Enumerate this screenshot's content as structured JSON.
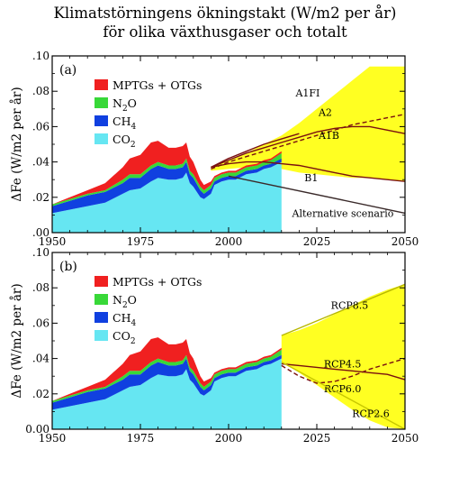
{
  "title": {
    "line1": "Klimatstörningens ökningstakt (W/m2 per år)",
    "line2": "för olika växthusgaser och totalt"
  },
  "colors": {
    "co2": "#66e6f2",
    "ch4": "#1040e0",
    "n2o": "#38d838",
    "mptgs": "#f02020",
    "scenario_band": "#ffff22",
    "scenario_line": "#7a1010"
  },
  "chart_data": [
    {
      "panel": "(a)",
      "type": "area",
      "ylabel": "ΔFe (W/m2 per år)",
      "xlim": [
        1950,
        2050
      ],
      "ylim": [
        0,
        0.1
      ],
      "xticks": [
        "1950",
        "1975",
        "2000",
        "2025",
        "2050"
      ],
      "yticks": [
        ".00",
        ".02",
        ".04",
        ".06",
        ".08",
        ".10"
      ],
      "legend": {
        "placement": "top-left",
        "entries": [
          "MPTGs + OTGs",
          "N2O",
          "CH4",
          "CO2"
        ]
      },
      "x": [
        1950,
        1955,
        1960,
        1965,
        1970,
        1972,
        1975,
        1978,
        1980,
        1983,
        1985,
        1987,
        1988,
        1989,
        1990,
        1992,
        1993,
        1995,
        1996,
        1998,
        2000,
        2002,
        2005,
        2008,
        2010,
        2012,
        2015
      ],
      "series": [
        {
          "name": "CO2",
          "values": [
            0.011,
            0.013,
            0.015,
            0.017,
            0.022,
            0.024,
            0.025,
            0.029,
            0.031,
            0.03,
            0.03,
            0.031,
            0.034,
            0.028,
            0.026,
            0.02,
            0.019,
            0.022,
            0.027,
            0.029,
            0.03,
            0.03,
            0.033,
            0.034,
            0.036,
            0.037,
            0.04
          ]
        },
        {
          "name": "CH4",
          "values": [
            0.004,
            0.005,
            0.006,
            0.006,
            0.006,
            0.007,
            0.006,
            0.007,
            0.007,
            0.006,
            0.006,
            0.006,
            0.006,
            0.005,
            0.005,
            0.004,
            0.003,
            0.003,
            0.002,
            0.002,
            0.002,
            0.002,
            0.002,
            0.002,
            0.002,
            0.002,
            0.002
          ]
        },
        {
          "name": "N2O",
          "values": [
            0.001,
            0.001,
            0.001,
            0.001,
            0.002,
            0.002,
            0.002,
            0.002,
            0.002,
            0.002,
            0.002,
            0.002,
            0.002,
            0.002,
            0.002,
            0.002,
            0.002,
            0.002,
            0.002,
            0.002,
            0.002,
            0.002,
            0.002,
            0.002,
            0.002,
            0.002,
            0.003
          ]
        },
        {
          "name": "MPTGs + OTGs",
          "values": [
            0.0,
            0.001,
            0.002,
            0.004,
            0.007,
            0.009,
            0.011,
            0.013,
            0.012,
            0.01,
            0.01,
            0.01,
            0.009,
            0.008,
            0.007,
            0.004,
            0.003,
            0.002,
            0.001,
            0.001,
            0.001,
            0.001,
            0.001,
            0.001,
            0.001,
            0.001,
            0.001
          ]
        }
      ],
      "scenarios": {
        "band": {
          "x": [
            1995,
            2000,
            2005,
            2010,
            2015,
            2020,
            2025,
            2030,
            2035,
            2040,
            2045,
            2050
          ],
          "upper": [
            0.037,
            0.041,
            0.045,
            0.05,
            0.055,
            0.062,
            0.07,
            0.078,
            0.086,
            0.094,
            0.094,
            0.094
          ],
          "lower": [
            0.035,
            0.036,
            0.037,
            0.037,
            0.036,
            0.034,
            0.033,
            0.032,
            0.031,
            0.031,
            0.03,
            0.029
          ]
        },
        "lines": [
          {
            "name": "A1FI",
            "style": "solid",
            "x": [
              1995,
              2000,
              2005,
              2010,
              2015,
              2020
            ],
            "values": [
              0.037,
              0.042,
              0.046,
              0.05,
              0.053,
              0.056
            ]
          },
          {
            "name": "A2",
            "style": "dashed",
            "x": [
              1995,
              2000,
              2005,
              2010,
              2015,
              2020,
              2025,
              2030,
              2035,
              2040,
              2045,
              2050
            ],
            "values": [
              0.036,
              0.04,
              0.043,
              0.046,
              0.049,
              0.052,
              0.055,
              0.058,
              0.061,
              0.063,
              0.065,
              0.067
            ]
          },
          {
            "name": "A1B",
            "style": "solid",
            "x": [
              1995,
              2000,
              2005,
              2010,
              2015,
              2020,
              2025,
              2030,
              2035,
              2040,
              2045,
              2050
            ],
            "values": [
              0.037,
              0.041,
              0.045,
              0.048,
              0.051,
              0.054,
              0.057,
              0.059,
              0.06,
              0.06,
              0.058,
              0.056
            ]
          },
          {
            "name": "B1",
            "style": "solid",
            "x": [
              1995,
              2000,
              2005,
              2010,
              2015,
              2020,
              2025,
              2030,
              2035,
              2040,
              2045,
              2050
            ],
            "values": [
              0.037,
              0.039,
              0.04,
              0.04,
              0.039,
              0.038,
              0.036,
              0.034,
              0.032,
              0.031,
              0.03,
              0.029
            ]
          },
          {
            "name": "Alternative scenario",
            "style": "solid",
            "x": [
              2000,
              2050
            ],
            "values": [
              0.032,
              0.011
            ]
          }
        ]
      }
    },
    {
      "panel": "(b)",
      "type": "area",
      "ylabel": "ΔFe (W/m2 per år)",
      "xlim": [
        1950,
        2050
      ],
      "ylim": [
        0,
        0.1
      ],
      "xticks": [
        "1950",
        "1975",
        "2000",
        "2025",
        "2050"
      ],
      "yticks": [
        "0.00",
        ".02",
        ".04",
        ".06",
        ".08",
        ".10"
      ],
      "legend": {
        "placement": "top-left",
        "entries": [
          "MPTGs + OTGs",
          "N2O",
          "CH4",
          "CO2"
        ]
      },
      "x": [
        1950,
        1955,
        1960,
        1965,
        1970,
        1972,
        1975,
        1978,
        1980,
        1983,
        1985,
        1987,
        1988,
        1989,
        1990,
        1992,
        1993,
        1995,
        1996,
        1998,
        2000,
        2002,
        2005,
        2008,
        2010,
        2012,
        2015
      ],
      "series": [
        {
          "name": "CO2",
          "values": [
            0.011,
            0.013,
            0.015,
            0.017,
            0.022,
            0.024,
            0.025,
            0.029,
            0.031,
            0.03,
            0.03,
            0.031,
            0.034,
            0.028,
            0.026,
            0.02,
            0.019,
            0.022,
            0.027,
            0.029,
            0.03,
            0.03,
            0.033,
            0.034,
            0.036,
            0.037,
            0.04
          ]
        },
        {
          "name": "CH4",
          "values": [
            0.004,
            0.005,
            0.006,
            0.006,
            0.006,
            0.007,
            0.006,
            0.007,
            0.007,
            0.006,
            0.006,
            0.006,
            0.006,
            0.005,
            0.005,
            0.004,
            0.003,
            0.003,
            0.002,
            0.002,
            0.002,
            0.002,
            0.002,
            0.002,
            0.002,
            0.002,
            0.002
          ]
        },
        {
          "name": "N2O",
          "values": [
            0.001,
            0.001,
            0.001,
            0.001,
            0.002,
            0.002,
            0.002,
            0.002,
            0.002,
            0.002,
            0.002,
            0.002,
            0.002,
            0.002,
            0.002,
            0.002,
            0.002,
            0.002,
            0.002,
            0.002,
            0.002,
            0.002,
            0.002,
            0.002,
            0.002,
            0.002,
            0.003
          ]
        },
        {
          "name": "MPTGs + OTGs",
          "values": [
            0.0,
            0.001,
            0.002,
            0.004,
            0.007,
            0.009,
            0.011,
            0.013,
            0.012,
            0.01,
            0.01,
            0.01,
            0.009,
            0.008,
            0.007,
            0.004,
            0.003,
            0.002,
            0.001,
            0.001,
            0.001,
            0.001,
            0.001,
            0.001,
            0.001,
            0.001,
            0.001
          ]
        }
      ],
      "scenarios": {
        "band": {
          "x": [
            2015,
            2020,
            2025,
            2030,
            2035,
            2040,
            2045,
            2050
          ],
          "upper": [
            0.053,
            0.056,
            0.06,
            0.065,
            0.07,
            0.075,
            0.079,
            0.082
          ],
          "lower": [
            0.038,
            0.032,
            0.025,
            0.018,
            0.011,
            0.005,
            0.001,
            0.0
          ]
        },
        "lines": [
          {
            "name": "RCP8.5",
            "style": "solid",
            "x": [
              2015,
              2050
            ],
            "values": [
              0.053,
              0.082
            ],
            "color": "#b8b800"
          },
          {
            "name": "RCP4.5",
            "style": "solid",
            "x": [
              2015,
              2020,
              2025,
              2030,
              2035,
              2040,
              2045,
              2050
            ],
            "values": [
              0.037,
              0.036,
              0.035,
              0.034,
              0.033,
              0.032,
              0.031,
              0.028
            ]
          },
          {
            "name": "RCP6.0",
            "style": "dashed",
            "x": [
              2015,
              2020,
              2025,
              2030,
              2035,
              2040,
              2045,
              2050
            ],
            "values": [
              0.036,
              0.03,
              0.026,
              0.027,
              0.03,
              0.034,
              0.037,
              0.04
            ]
          },
          {
            "name": "RCP2.6",
            "style": "solid",
            "x": [
              2015,
              2050
            ],
            "values": [
              0.038,
              0.0
            ],
            "color": "#c8c800"
          }
        ]
      }
    }
  ]
}
